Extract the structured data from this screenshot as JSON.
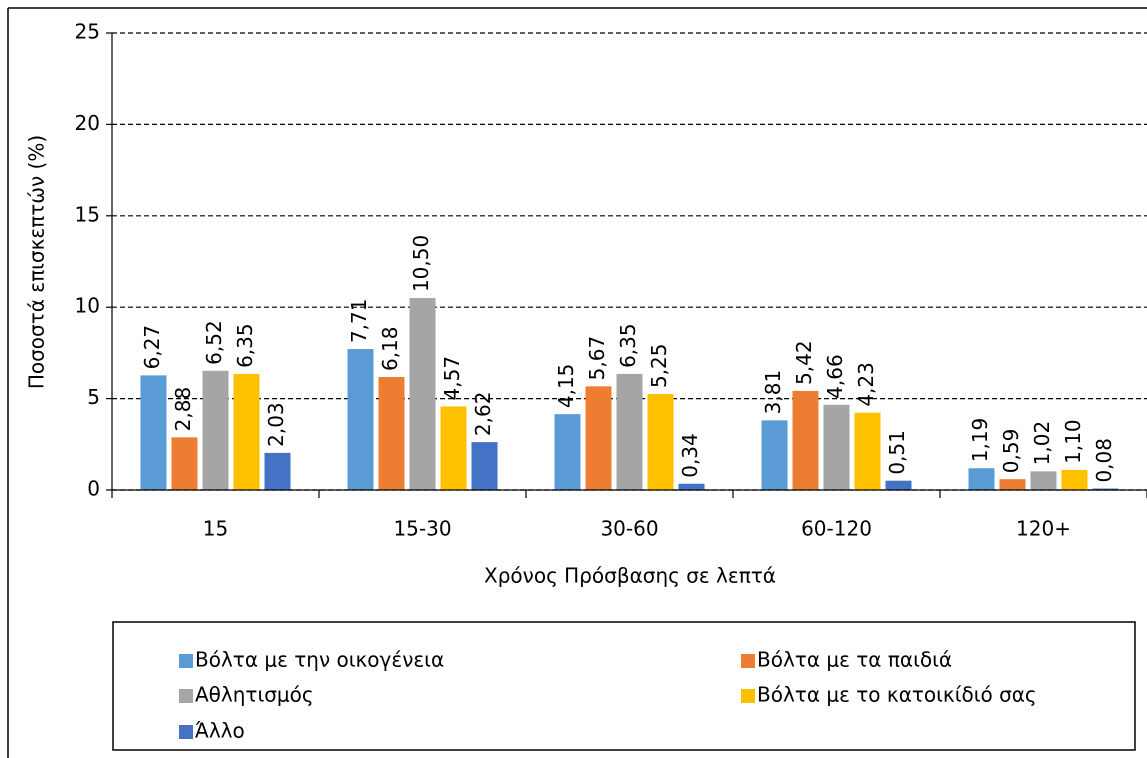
{
  "chart_data": {
    "type": "bar",
    "x_label": "Χρόνος Πρόσβασης σε λεπτά",
    "y_label": "Ποσοστά επισκεπτών (%)",
    "categories": [
      "15",
      "15-30",
      "30-60",
      "60-120",
      "120+"
    ],
    "series": [
      {
        "name": "Βόλτα με την οικογένεια",
        "color": "#5b9bd5",
        "values": [
          6.27,
          7.71,
          4.15,
          3.81,
          1.19
        ],
        "value_labels": [
          "6,27",
          "7,71",
          "4,15",
          "3,81",
          "1,19"
        ]
      },
      {
        "name": "Βόλτα με τα παιδιά",
        "color": "#ed7d31",
        "values": [
          2.88,
          6.18,
          5.67,
          5.42,
          0.59
        ],
        "value_labels": [
          "2,88",
          "6,18",
          "5,67",
          "5,42",
          "0,59"
        ]
      },
      {
        "name": "Αθλητισμός",
        "color": "#a5a5a5",
        "values": [
          6.52,
          10.5,
          6.35,
          4.66,
          1.02
        ],
        "value_labels": [
          "6,52",
          "10,50",
          "6,35",
          "4,66",
          "1,02"
        ]
      },
      {
        "name": "Βόλτα με το κατοικίδιό σας",
        "color": "#ffc000",
        "values": [
          6.35,
          4.57,
          5.25,
          4.23,
          1.1
        ],
        "value_labels": [
          "6,35",
          "4,57",
          "5,25",
          "4,23",
          "1,10"
        ]
      },
      {
        "name": "Άλλο",
        "color": "#4472c4",
        "values": [
          2.03,
          2.62,
          0.34,
          0.51,
          0.08
        ],
        "value_labels": [
          "2,03",
          "2,62",
          "0,34",
          "0,51",
          "0,08"
        ]
      }
    ],
    "ylim": [
      0,
      25
    ],
    "yticks": [
      0,
      5,
      10,
      15,
      20,
      25
    ],
    "grid": true,
    "legend": "bottom"
  }
}
